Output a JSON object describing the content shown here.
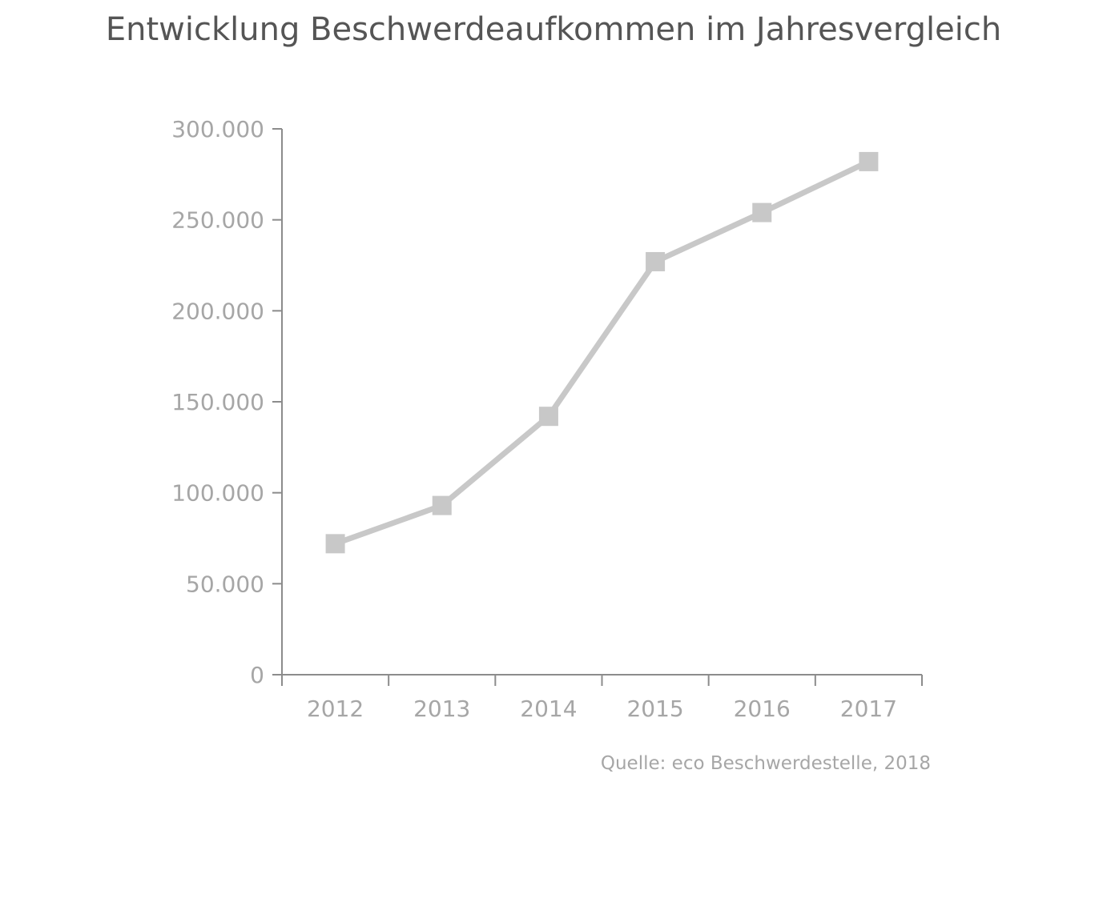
{
  "chart_data": {
    "type": "line",
    "title": "Entwicklung Beschwerdeaufkommen im Jahresvergleich",
    "source": "Quelle: eco Beschwerdestelle, 2018",
    "categories": [
      "2012",
      "2013",
      "2014",
      "2015",
      "2016",
      "2017"
    ],
    "series": [
      {
        "values": [
          72000,
          93000,
          142000,
          227000,
          254000,
          282000
        ],
        "color": "#c8c8c8"
      }
    ],
    "yticks": [
      0,
      50000,
      100000,
      150000,
      200000,
      250000,
      300000
    ],
    "ytick_labels": [
      "0",
      "50.000",
      "100.000",
      "150.000",
      "200.000",
      "250.000",
      "300.000"
    ],
    "ylim": [
      0,
      300000
    ],
    "marker": "square",
    "axis_color": "#8c8c8c",
    "grid": false,
    "legend": "none"
  }
}
